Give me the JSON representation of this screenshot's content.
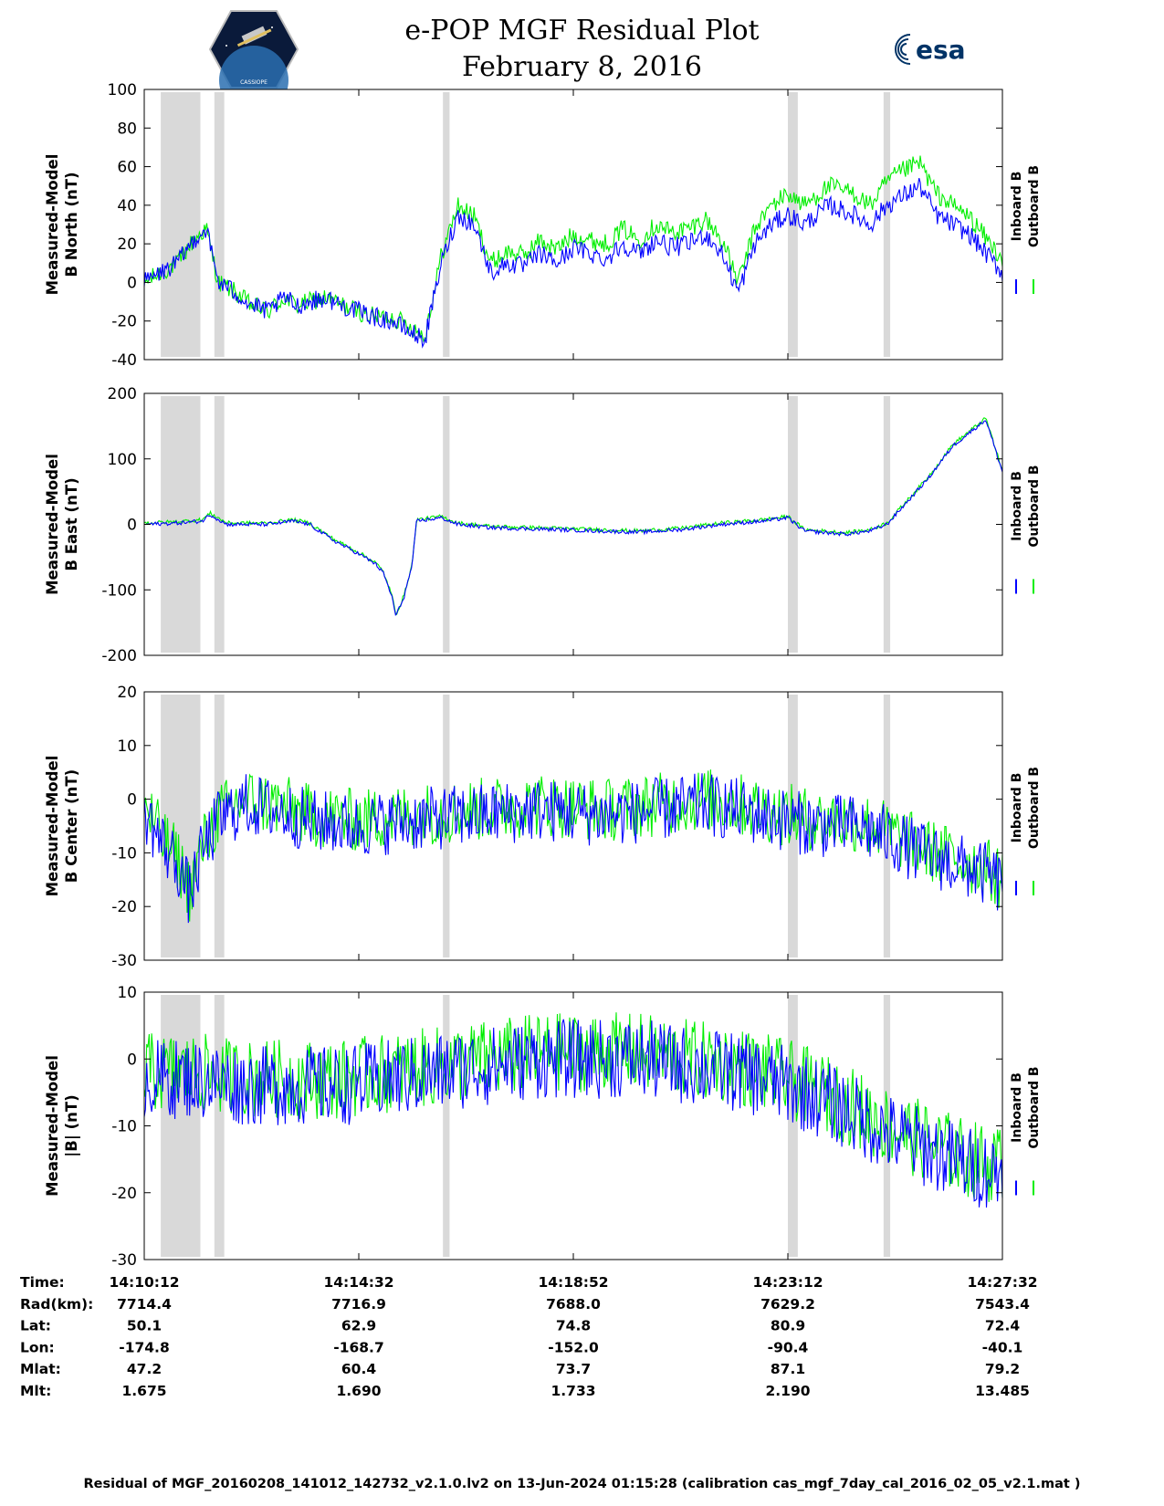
{
  "title": [
    "e-POP MGF Residual Plot",
    "February 8, 2016"
  ],
  "logos": {
    "left": "CASSIOPE mission patch",
    "right": "esa",
    "left_text": "CASSIOPE"
  },
  "colors": {
    "inboard": "#0000ff",
    "outboard": "#00ee00",
    "shade": "#d9d9d9"
  },
  "legend": {
    "inboard": "Inboard B",
    "outboard": "Outboard B"
  },
  "chart_data": [
    {
      "type": "line",
      "ylabel": [
        "Measured-Model",
        "B North (nT)"
      ],
      "ylim": [
        -40,
        100
      ],
      "yticks": [
        100,
        80,
        60,
        40,
        20,
        0,
        -20,
        -40
      ],
      "yticklabels": [
        "100",
        "80",
        "60",
        "40",
        "20",
        "0",
        "-20",
        "-40"
      ],
      "grid": false,
      "legend_position": "right",
      "series": [
        {
          "name": "Inboard B",
          "color": "#0000ff",
          "x": [
            0,
            20,
            40,
            60,
            75,
            90,
            110,
            130,
            150,
            170,
            185,
            200,
            220,
            240,
            260,
            280,
            300,
            320,
            340,
            360,
            380,
            400,
            420,
            440,
            460,
            480,
            500,
            520,
            540,
            560,
            580,
            600,
            620,
            640,
            660,
            680,
            700,
            720,
            740,
            760,
            780,
            800,
            830,
            860,
            880,
            900,
            920,
            940,
            960,
            980,
            1000,
            1040
          ],
          "y": [
            0,
            5,
            10,
            22,
            28,
            0,
            -5,
            -12,
            -15,
            -8,
            -12,
            -10,
            -8,
            -12,
            -15,
            -18,
            -20,
            -25,
            -30,
            10,
            35,
            30,
            5,
            10,
            8,
            15,
            10,
            18,
            15,
            12,
            20,
            15,
            22,
            18,
            20,
            25,
            15,
            -5,
            20,
            30,
            35,
            30,
            40,
            35,
            30,
            40,
            45,
            50,
            35,
            30,
            25,
            5
          ]
        },
        {
          "name": "Outboard B",
          "color": "#00ee00",
          "x": [
            0,
            20,
            40,
            60,
            75,
            90,
            110,
            130,
            150,
            170,
            185,
            200,
            220,
            240,
            260,
            280,
            300,
            320,
            340,
            360,
            380,
            400,
            420,
            440,
            460,
            480,
            500,
            520,
            540,
            560,
            580,
            600,
            620,
            640,
            660,
            680,
            700,
            720,
            740,
            760,
            780,
            800,
            830,
            860,
            880,
            900,
            920,
            940,
            960,
            980,
            1000,
            1040
          ],
          "y": [
            0,
            5,
            10,
            22,
            28,
            0,
            -5,
            -12,
            -15,
            -8,
            -12,
            -10,
            -8,
            -12,
            -15,
            -18,
            -18,
            -22,
            -28,
            14,
            40,
            34,
            10,
            16,
            14,
            22,
            17,
            25,
            22,
            20,
            28,
            22,
            30,
            26,
            28,
            33,
            22,
            0,
            28,
            40,
            46,
            40,
            50,
            46,
            40,
            52,
            58,
            62,
            46,
            40,
            34,
            12
          ]
        }
      ]
    },
    {
      "type": "line",
      "ylabel": [
        "Measured-Model",
        "B East (nT)"
      ],
      "ylim": [
        -200,
        200
      ],
      "yticks": [
        200,
        100,
        0,
        -100,
        -200
      ],
      "yticklabels": [
        "200",
        "100",
        "0",
        "-100",
        "-200"
      ],
      "grid": false,
      "legend_position": "right",
      "series": [
        {
          "name": "Inboard B",
          "color": "#0000ff",
          "x": [
            0,
            40,
            70,
            80,
            100,
            150,
            180,
            200,
            230,
            260,
            280,
            290,
            300,
            305,
            315,
            325,
            330,
            360,
            380,
            420,
            500,
            550,
            600,
            650,
            700,
            750,
            780,
            800,
            850,
            880,
            900,
            950,
            980,
            1020,
            1040
          ],
          "y": [
            0,
            2,
            5,
            15,
            0,
            0,
            5,
            0,
            -25,
            -45,
            -60,
            -75,
            -110,
            -140,
            -110,
            -60,
            5,
            10,
            0,
            -5,
            -8,
            -10,
            -12,
            -8,
            0,
            5,
            10,
            -10,
            -15,
            -10,
            0,
            70,
            120,
            160,
            80
          ]
        },
        {
          "name": "Outboard B",
          "color": "#00ee00",
          "x": [
            0,
            40,
            70,
            80,
            100,
            150,
            180,
            200,
            230,
            260,
            280,
            290,
            300,
            305,
            315,
            325,
            330,
            360,
            380,
            420,
            500,
            550,
            600,
            650,
            700,
            750,
            780,
            800,
            850,
            880,
            900,
            950,
            980,
            1020,
            1040
          ],
          "y": [
            2,
            4,
            7,
            17,
            2,
            2,
            7,
            2,
            -23,
            -43,
            -58,
            -73,
            -108,
            -138,
            -108,
            -58,
            7,
            12,
            2,
            -3,
            -6,
            -8,
            -10,
            -6,
            2,
            7,
            12,
            -8,
            -13,
            -8,
            2,
            72,
            122,
            162,
            82
          ]
        }
      ]
    },
    {
      "type": "line",
      "ylabel": [
        "Measured-Model",
        "B Center (nT)"
      ],
      "ylim": [
        -30,
        20
      ],
      "yticks": [
        20,
        10,
        0,
        -10,
        -20,
        -30
      ],
      "yticklabels": [
        "20",
        "10",
        "0",
        "-10",
        "-20",
        "-30"
      ],
      "grid": false,
      "legend_position": "right",
      "series": [
        {
          "name": "Inboard B",
          "color": "#0000ff",
          "x": [
            0,
            20,
            40,
            55,
            70,
            90,
            120,
            160,
            200,
            260,
            320,
            400,
            480,
            560,
            620,
            680,
            720,
            780,
            820,
            860,
            900,
            940,
            980,
            1020,
            1040
          ],
          "y": [
            -2,
            -8,
            -12,
            -18,
            -10,
            -4,
            -1,
            -2,
            -4,
            -5,
            -4,
            -3,
            -2,
            -3,
            -2,
            -1,
            -2,
            -4,
            -5,
            -5,
            -7,
            -10,
            -12,
            -14,
            -16
          ]
        },
        {
          "name": "Outboard B",
          "color": "#00ee00",
          "x": [
            0,
            20,
            40,
            55,
            70,
            90,
            120,
            160,
            200,
            260,
            320,
            400,
            480,
            560,
            620,
            680,
            720,
            780,
            820,
            860,
            900,
            940,
            980,
            1020,
            1040
          ],
          "y": [
            -1,
            -7,
            -11,
            -17,
            -9,
            -3,
            0,
            -1,
            -3,
            -4,
            -3,
            -2,
            -1,
            -2,
            -1,
            0,
            -1,
            -3,
            -4,
            -4,
            -6,
            -9,
            -11,
            -13,
            -15
          ]
        }
      ]
    },
    {
      "type": "line",
      "ylabel": [
        "Measured-Model",
        "|B| (nT)"
      ],
      "ylim": [
        -30,
        10
      ],
      "yticks": [
        10,
        0,
        -10,
        -20,
        -30
      ],
      "yticklabels": [
        "10",
        "0",
        "-10",
        "-20",
        "-30"
      ],
      "grid": false,
      "legend_position": "right",
      "series": [
        {
          "name": "Inboard B",
          "color": "#0000ff",
          "x": [
            0,
            60,
            120,
            180,
            240,
            300,
            360,
            420,
            480,
            540,
            600,
            660,
            720,
            780,
            840,
            900,
            960,
            1000,
            1040
          ],
          "y": [
            -3,
            -3,
            -4,
            -4,
            -4,
            -3,
            -2,
            -1,
            0,
            0,
            0,
            -1,
            -2,
            -4,
            -7,
            -11,
            -14,
            -16,
            -17
          ]
        },
        {
          "name": "Outboard B",
          "color": "#00ee00",
          "x": [
            0,
            60,
            120,
            180,
            240,
            300,
            360,
            420,
            480,
            540,
            600,
            660,
            720,
            780,
            840,
            900,
            960,
            1000,
            1040
          ],
          "y": [
            -2,
            -2,
            -3,
            -3,
            -3,
            -2,
            -1,
            0,
            1,
            1,
            1,
            0,
            -1,
            -3,
            -6,
            -10,
            -13,
            -15,
            -16
          ]
        }
      ]
    }
  ],
  "xlim": [
    0,
    1040
  ],
  "x_tick_values": [
    0,
    260,
    520,
    780,
    1040
  ],
  "shaded_intervals": [
    [
      20,
      68
    ],
    [
      85,
      97
    ],
    [
      362,
      370
    ],
    [
      780,
      792
    ],
    [
      896,
      904
    ]
  ],
  "info_rows": [
    {
      "label": "Time:",
      "values": [
        "14:10:12",
        "14:14:32",
        "14:18:52",
        "14:23:12",
        "14:27:32"
      ]
    },
    {
      "label": "Rad(km):",
      "values": [
        "7714.4",
        "7716.9",
        "7688.0",
        "7629.2",
        "7543.4"
      ]
    },
    {
      "label": "Lat:",
      "values": [
        "50.1",
        "62.9",
        "74.8",
        "80.9",
        "72.4"
      ]
    },
    {
      "label": "Lon:",
      "values": [
        "-174.8",
        "-168.7",
        "-152.0",
        "-90.4",
        "-40.1"
      ]
    },
    {
      "label": "Mlat:",
      "values": [
        "47.2",
        "60.4",
        "73.7",
        "87.1",
        "79.2"
      ]
    },
    {
      "label": "Mlt:",
      "values": [
        "1.675",
        "1.690",
        "1.733",
        "2.190",
        "13.485"
      ]
    }
  ],
  "footer": "Residual of MGF_20160208_141012_142732_v2.1.0.lv2 on 13-Jun-2024 01:15:28 (calibration cas_mgf_7day_cal_2016_02_05_v2.1.mat )"
}
